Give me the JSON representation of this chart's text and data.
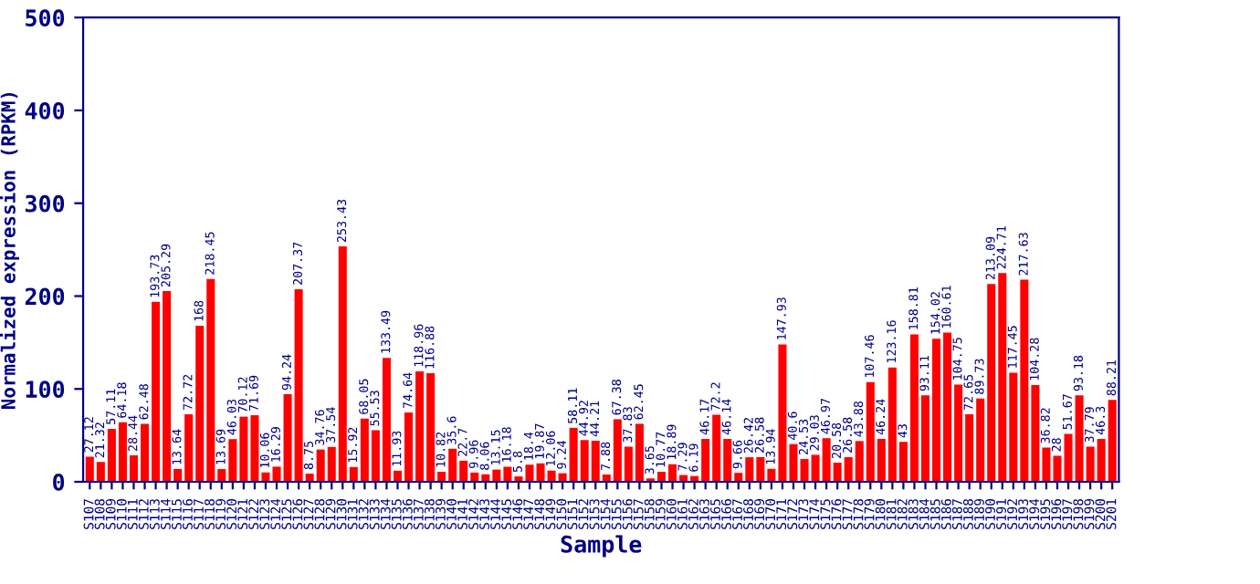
{
  "chart_data": {
    "type": "bar",
    "xlabel": "Sample",
    "ylabel": "Normalized expression (RPKM)",
    "categories": [
      "S107",
      "S108",
      "S109",
      "S110",
      "S111",
      "S112",
      "S113",
      "S114",
      "S115",
      "S116",
      "S117",
      "S118",
      "S119",
      "S120",
      "S121",
      "S122",
      "S123",
      "S124",
      "S125",
      "S126",
      "S127",
      "S128",
      "S129",
      "S130",
      "S131",
      "S132",
      "S133",
      "S134",
      "S135",
      "S136",
      "S137",
      "S138",
      "S139",
      "S140",
      "S141",
      "S142",
      "S143",
      "S144",
      "S145",
      "S146",
      "S147",
      "S148",
      "S149",
      "S150",
      "S151",
      "S152",
      "S153",
      "S154",
      "S155",
      "S156",
      "S157",
      "S158",
      "S159",
      "S160",
      "S161",
      "S162",
      "S163",
      "S165",
      "S166",
      "S167",
      "S168",
      "S169",
      "S170",
      "S171",
      "S172",
      "S173",
      "S174",
      "S175",
      "S176",
      "S177",
      "S178",
      "S179",
      "S180",
      "S181",
      "S182",
      "S183",
      "S184",
      "S185",
      "S186",
      "S187",
      "S188",
      "S189",
      "S190",
      "S191",
      "S192",
      "S193",
      "S194",
      "S195",
      "S196",
      "S197",
      "S198",
      "S199",
      "S200",
      "S201"
    ],
    "values": [
      27.12,
      21.32,
      57.11,
      64.18,
      28.44,
      62.48,
      193.73,
      205.29,
      13.64,
      72.72,
      168,
      218.45,
      13.69,
      46.03,
      70.12,
      71.69,
      10.06,
      16.29,
      94.24,
      207.37,
      8.75,
      34.76,
      37.54,
      253.43,
      15.92,
      68.05,
      55.53,
      133.49,
      11.93,
      74.64,
      118.96,
      116.88,
      10.82,
      35.6,
      22.7,
      9.96,
      8.06,
      13.15,
      16.18,
      5.8,
      18.4,
      19.87,
      12.06,
      9.24,
      58.11,
      44.92,
      44.21,
      7.88,
      67.38,
      37.83,
      62.45,
      3.65,
      10.77,
      18.89,
      7.29,
      6.19,
      46.17,
      72.2,
      46.14,
      9.66,
      26.42,
      26.58,
      13.94,
      147.93,
      40.6,
      24.53,
      29.03,
      46.97,
      20.58,
      26.58,
      43.88,
      107.46,
      46.24,
      123.16,
      43,
      158.81,
      93.11,
      154.02,
      160.61,
      104.75,
      72.65,
      89.73,
      213.09,
      224.71,
      117.45,
      217.63,
      104.28,
      36.82,
      28,
      51.67,
      93.18,
      37.79,
      46.3,
      88.21
    ],
    "color": "#ff0000",
    "data_labels": true,
    "ylim": [
      0,
      500
    ],
    "yticks": [
      0,
      100,
      200,
      300,
      400,
      500
    ],
    "grid": false,
    "legend": false
  }
}
